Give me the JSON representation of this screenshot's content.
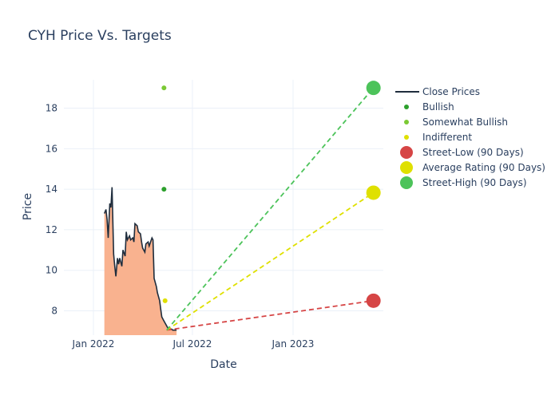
{
  "chart_data": {
    "type": "line",
    "title": "CYH Price Vs. Targets",
    "xlabel": "Date",
    "ylabel": "Price",
    "xlim": [
      "2021-11-08",
      "2023-06-15"
    ],
    "ylim": [
      6.8,
      19.4
    ],
    "x_ticks": [
      {
        "date": "2022-01-01",
        "label": "Jan 2022"
      },
      {
        "date": "2022-07-01",
        "label": "Jul 2022"
      },
      {
        "date": "2023-01-01",
        "label": "Jan 2023"
      }
    ],
    "y_ticks": [
      8,
      10,
      12,
      14,
      16,
      18
    ],
    "grid": true,
    "legend_position": "top-right",
    "close_prices": {
      "name": "Close Prices",
      "color": "#1f2d3d",
      "fill_color": "#f9b28f",
      "dates": [
        "2022-01-21",
        "2022-01-24",
        "2022-01-26",
        "2022-01-28",
        "2022-01-31",
        "2022-02-02",
        "2022-02-04",
        "2022-02-07",
        "2022-02-09",
        "2022-02-11",
        "2022-02-14",
        "2022-02-16",
        "2022-02-18",
        "2022-02-22",
        "2022-02-24",
        "2022-02-28",
        "2022-03-02",
        "2022-03-04",
        "2022-03-08",
        "2022-03-10",
        "2022-03-14",
        "2022-03-16",
        "2022-03-18",
        "2022-03-22",
        "2022-03-24",
        "2022-03-28",
        "2022-03-30",
        "2022-04-01",
        "2022-04-05",
        "2022-04-07",
        "2022-04-11",
        "2022-04-13",
        "2022-04-18",
        "2022-04-20",
        "2022-04-22",
        "2022-04-26",
        "2022-04-28",
        "2022-05-02",
        "2022-05-04",
        "2022-05-06",
        "2022-05-10",
        "2022-05-12",
        "2022-05-16",
        "2022-05-18",
        "2022-05-20",
        "2022-05-24",
        "2022-05-26",
        "2022-05-31",
        "2022-06-02"
      ],
      "values": [
        12.8,
        13.0,
        12.5,
        11.6,
        13.3,
        13.1,
        14.1,
        10.8,
        10.2,
        9.7,
        10.6,
        10.3,
        10.6,
        10.2,
        11.0,
        10.7,
        11.9,
        11.5,
        11.7,
        11.5,
        11.6,
        11.4,
        12.3,
        12.2,
        11.9,
        11.8,
        11.4,
        11.1,
        10.9,
        11.3,
        11.4,
        11.2,
        11.6,
        11.5,
        9.6,
        9.2,
        8.9,
        8.5,
        8.1,
        7.7,
        7.5,
        7.4,
        7.2,
        7.1,
        7.1,
        7.1,
        7.05,
        7.05,
        7.05
      ]
    },
    "analyst_ratings": [
      {
        "name": "Bullish",
        "color": "#2ca02c",
        "points": [
          {
            "date": "2022-05-10",
            "value": 14
          }
        ]
      },
      {
        "name": "Somewhat Bullish",
        "color": "#7bc934",
        "points": [
          {
            "date": "2022-05-10",
            "value": 19
          }
        ]
      },
      {
        "name": "Indifferent",
        "color": "#dfe000",
        "points": [
          {
            "date": "2022-05-12",
            "value": 8.5
          }
        ]
      }
    ],
    "targets": [
      {
        "name": "Street-Low (90 Days)",
        "color": "#d64545",
        "start_date": "2022-05-15",
        "start_value": 7.05,
        "end_date": "2023-05-28",
        "end_value": 8.5
      },
      {
        "name": "Average Rating (90 Days)",
        "color": "#dfe000",
        "start_date": "2022-05-15",
        "start_value": 7.05,
        "end_date": "2023-05-28",
        "end_value": 13.83
      },
      {
        "name": "Street-High (90 Days)",
        "color": "#4cc35a",
        "start_date": "2022-05-15",
        "start_value": 7.05,
        "end_date": "2023-05-28",
        "end_value": 19
      }
    ],
    "legend": [
      {
        "label": "Close Prices",
        "kind": "line",
        "color": "#1f2d3d"
      },
      {
        "label": "Bullish",
        "kind": "dot",
        "color": "#2ca02c"
      },
      {
        "label": "Somewhat Bullish",
        "kind": "dot",
        "color": "#7bc934"
      },
      {
        "label": "Indifferent",
        "kind": "dot",
        "color": "#dfe000"
      },
      {
        "label": "Street-Low (90 Days)",
        "kind": "bigdot",
        "color": "#d64545"
      },
      {
        "label": "Average Rating (90 Days)",
        "kind": "bigdot",
        "color": "#dfe000"
      },
      {
        "label": "Street-High (90 Days)",
        "kind": "bigdot",
        "color": "#4cc35a"
      }
    ]
  }
}
